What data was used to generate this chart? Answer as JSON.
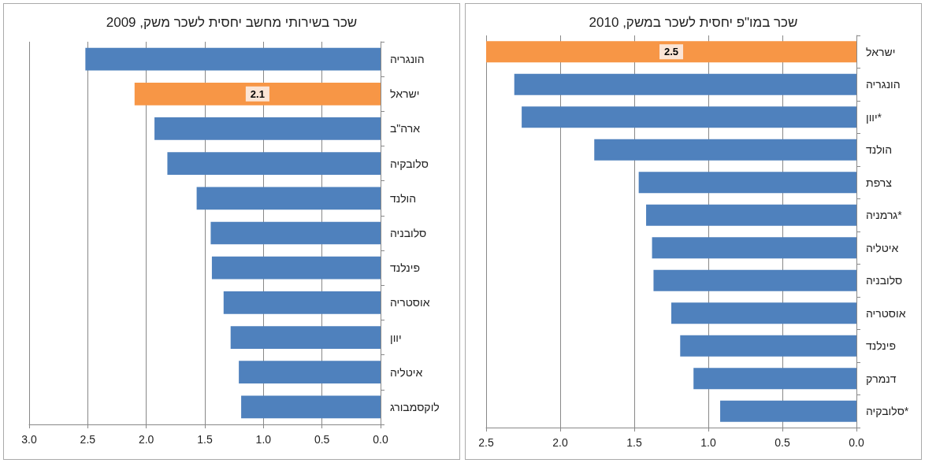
{
  "chart_data": [
    {
      "type": "bar",
      "orientation": "horizontal",
      "title": "שכר בשירותי מחשב יחסית לשכר משק, 2009",
      "categories": [
        "הונגריה",
        "ישראל",
        "ארה\"ב",
        "סלובקיה",
        "הולנד",
        "סלובניה",
        "פינלנד",
        "אוסטריה",
        "יוון",
        "איטליה",
        "לוקסמבורג"
      ],
      "values": [
        2.52,
        2.1,
        1.93,
        1.82,
        1.57,
        1.45,
        1.44,
        1.34,
        1.28,
        1.21,
        1.19
      ],
      "colors": [
        "#4f81bd",
        "#f79646",
        "#4f81bd",
        "#4f81bd",
        "#4f81bd",
        "#4f81bd",
        "#4f81bd",
        "#4f81bd",
        "#4f81bd",
        "#4f81bd",
        "#4f81bd"
      ],
      "value_labels": [
        null,
        "2.1",
        null,
        null,
        null,
        null,
        null,
        null,
        null,
        null,
        null
      ],
      "xlim": [
        3,
        0
      ],
      "xticks": [
        {
          "value": 3,
          "label": "3.0"
        },
        2.5,
        {
          "value": 2,
          "label": "2.0"
        },
        1.5,
        {
          "value": 1,
          "label": "1.0"
        },
        0.5,
        {
          "value": 0,
          "label": "0.0"
        }
      ],
      "grid": "x"
    },
    {
      "type": "bar",
      "orientation": "horizontal",
      "title": "שכר במו\"פ יחסית לשכר במשק, 2010",
      "categories": [
        "ישראל",
        "הונגריה",
        "יוון*",
        "הולנד",
        "צרפת",
        "גרמניה*",
        "איטליה",
        "סלובניה",
        "אוסטריה",
        "פינלנד",
        "דנמרק",
        "סלובקיה*"
      ],
      "values": [
        2.5,
        2.31,
        2.26,
        1.77,
        1.47,
        1.42,
        1.38,
        1.37,
        1.25,
        1.19,
        1.1,
        0.92
      ],
      "colors": [
        "#f79646",
        "#4f81bd",
        "#4f81bd",
        "#4f81bd",
        "#4f81bd",
        "#4f81bd",
        "#4f81bd",
        "#4f81bd",
        "#4f81bd",
        "#4f81bd",
        "#4f81bd",
        "#4f81bd"
      ],
      "value_labels": [
        "2.5",
        null,
        null,
        null,
        null,
        null,
        null,
        null,
        null,
        null,
        null,
        null
      ],
      "xlim": [
        2.5,
        0
      ],
      "xticks": [
        2.5,
        {
          "value": 2,
          "label": "2.0"
        },
        1.5,
        {
          "value": 1,
          "label": "1.0"
        },
        0.5,
        {
          "value": 0,
          "label": "0.0"
        }
      ],
      "grid": "x"
    }
  ]
}
